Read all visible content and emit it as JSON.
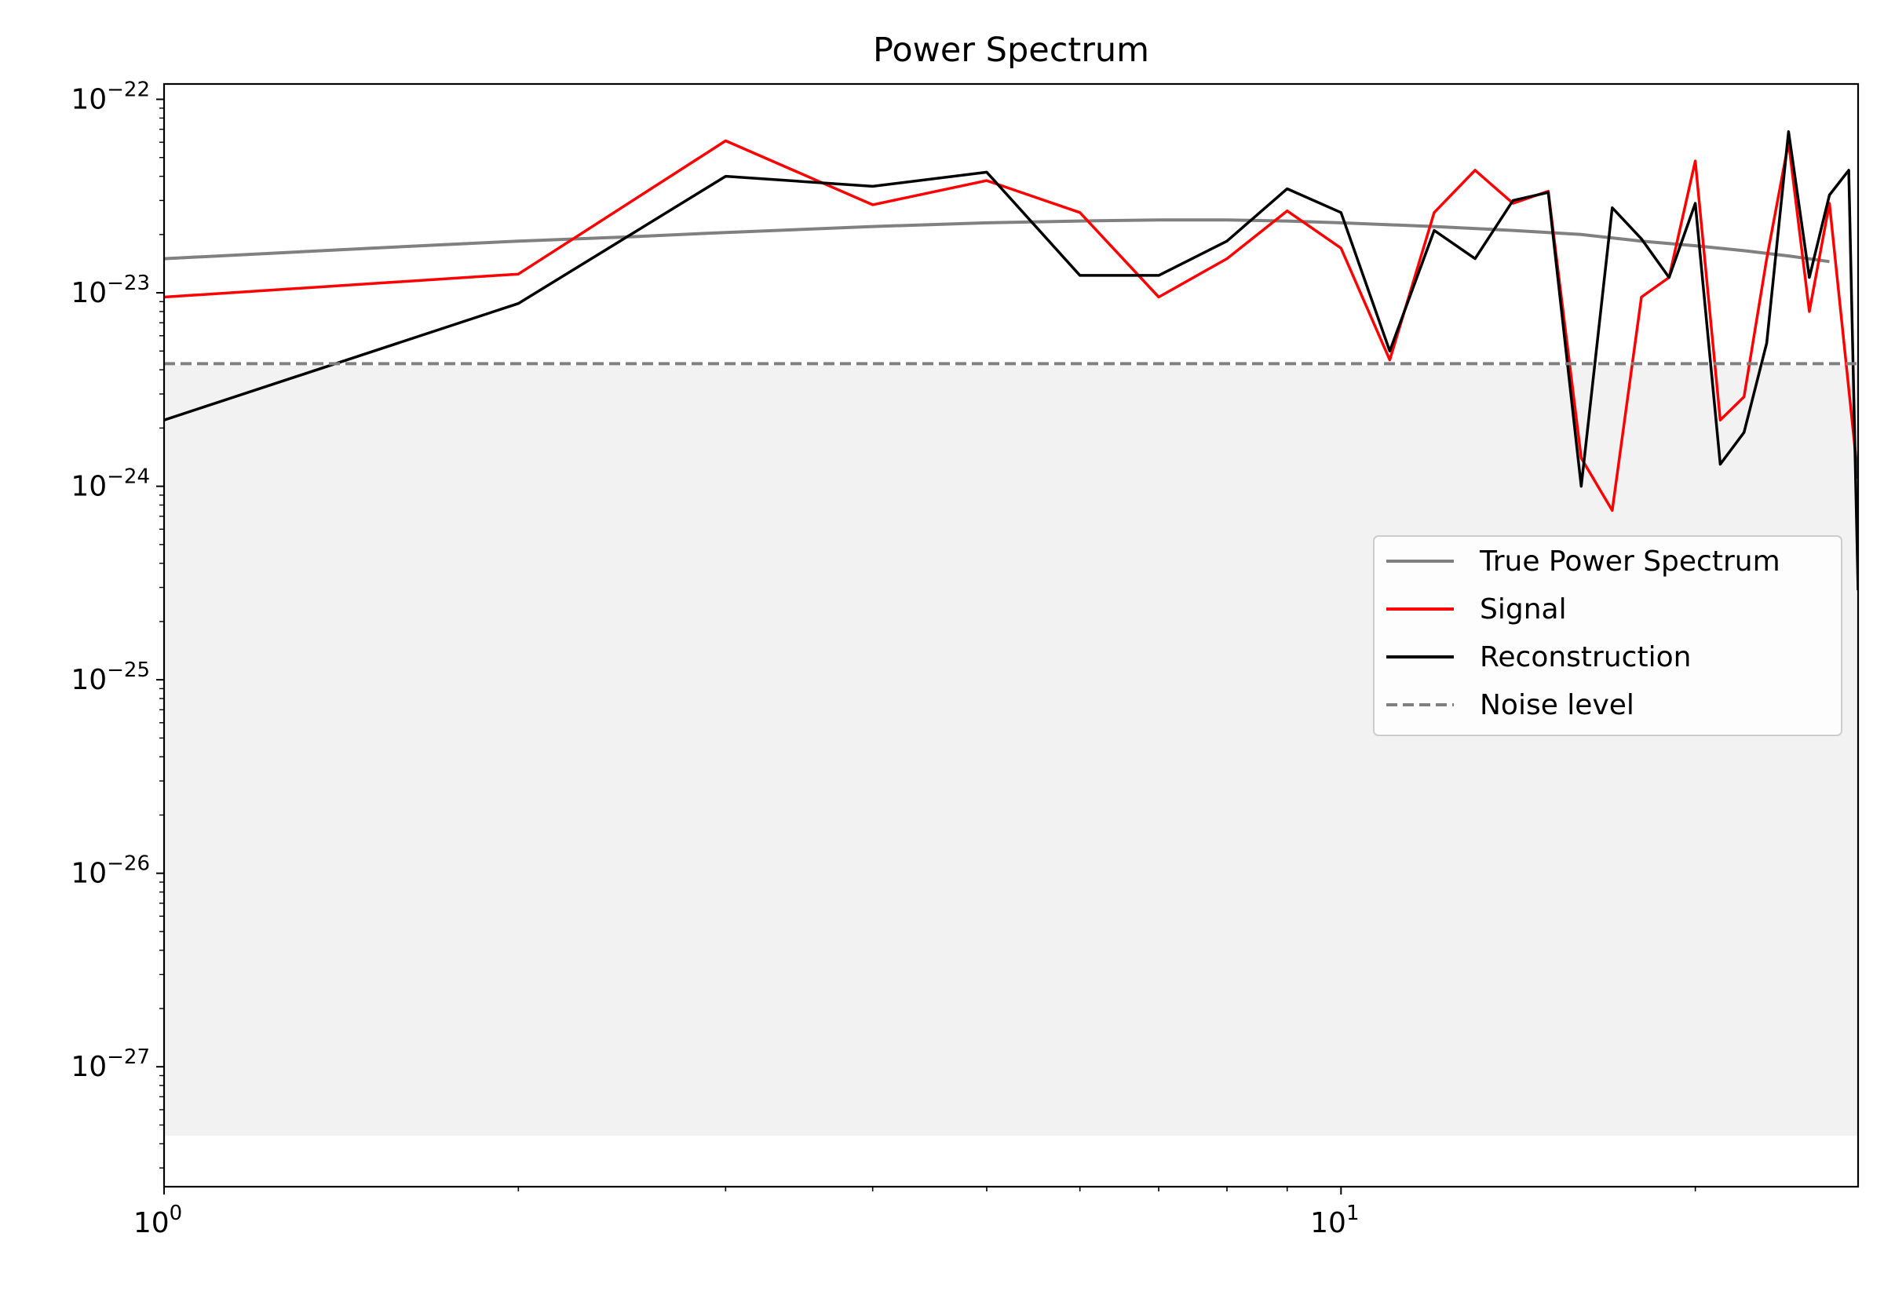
{
  "chart_data": {
    "type": "line",
    "title": "Power Spectrum",
    "xlabel": "",
    "ylabel": "",
    "x_scale": "log",
    "y_scale": "log",
    "xlim": [
      1,
      27.5
    ],
    "ylim": [
      2.4e-28,
      1.2e-22
    ],
    "grid": false,
    "legend_position": "center-right",
    "x_ticks": [
      {
        "value": 1,
        "base": "10",
        "exp": "0"
      },
      {
        "value": 10,
        "base": "10",
        "exp": "1"
      }
    ],
    "y_ticks": [
      {
        "value": 1e-22,
        "base": "10",
        "exp": "−22"
      },
      {
        "value": 1e-23,
        "base": "10",
        "exp": "−23"
      },
      {
        "value": 1e-24,
        "base": "10",
        "exp": "−24"
      },
      {
        "value": 1e-25,
        "base": "10",
        "exp": "−25"
      },
      {
        "value": 1e-26,
        "base": "10",
        "exp": "−26"
      },
      {
        "value": 1e-27,
        "base": "10",
        "exp": "−27"
      }
    ],
    "shaded_region": {
      "y_min": 4.4e-28,
      "y_max": 4.2e-24,
      "color": "#f2f2f2"
    },
    "series": [
      {
        "name": "True Power Spectrum",
        "color": "#808080",
        "style": "solid",
        "x": [
          1,
          1.5,
          2,
          2.5,
          3,
          4,
          5,
          6,
          7,
          8,
          9,
          10,
          12,
          14,
          16,
          18,
          20,
          22,
          24,
          26
        ],
        "y": [
          1.5e-23,
          1.7e-23,
          1.85e-23,
          1.95e-23,
          2.05e-23,
          2.2e-23,
          2.3e-23,
          2.35e-23,
          2.38e-23,
          2.38e-23,
          2.35e-23,
          2.3e-23,
          2.2e-23,
          2.1e-23,
          2e-23,
          1.85e-23,
          1.75e-23,
          1.65e-23,
          1.55e-23,
          1.45e-23
        ]
      },
      {
        "name": "Signal",
        "color": "#ff0000",
        "style": "solid",
        "x": [
          1,
          2,
          3,
          4,
          5,
          6,
          7,
          8,
          9,
          10,
          11,
          12,
          13,
          14,
          15,
          16,
          17,
          18,
          19,
          20,
          21,
          22,
          23,
          24,
          25,
          26,
          27.5
        ],
        "y": [
          9.5e-24,
          1.25e-23,
          6.1e-23,
          2.85e-23,
          3.8e-23,
          2.6e-23,
          9.5e-24,
          1.5e-23,
          2.65e-23,
          1.7e-23,
          4.5e-24,
          2.6e-23,
          4.3e-23,
          2.9e-23,
          3.35e-23,
          1.4e-24,
          7.5e-25,
          9.5e-24,
          1.2e-23,
          4.8e-23,
          2.2e-24,
          2.9e-24,
          1.5e-23,
          6e-23,
          8e-24,
          2.9e-23,
          1.1e-24
        ]
      },
      {
        "name": "Reconstruction",
        "color": "#000000",
        "style": "solid",
        "x": [
          1,
          2,
          3,
          4,
          5,
          6,
          7,
          8,
          9,
          10,
          11,
          12,
          13,
          14,
          15,
          16,
          17,
          18,
          19,
          20,
          21,
          22,
          23,
          24,
          25,
          26,
          27,
          27.5
        ],
        "y": [
          2.2e-24,
          8.8e-24,
          4e-23,
          3.55e-23,
          4.2e-23,
          1.23e-23,
          1.23e-23,
          1.85e-23,
          3.45e-23,
          2.6e-23,
          5e-24,
          2.1e-23,
          1.5e-23,
          3e-23,
          3.3e-23,
          1e-24,
          2.75e-23,
          1.9e-23,
          1.2e-23,
          2.9e-23,
          1.3e-24,
          1.9e-24,
          5.5e-24,
          6.8e-23,
          1.2e-23,
          3.2e-23,
          4.3e-23,
          2.9e-25
        ]
      },
      {
        "name": "Noise level",
        "color": "#808080",
        "style": "dashed",
        "x": [
          1,
          27.5
        ],
        "y": [
          4.3e-24,
          4.3e-24
        ]
      }
    ]
  }
}
